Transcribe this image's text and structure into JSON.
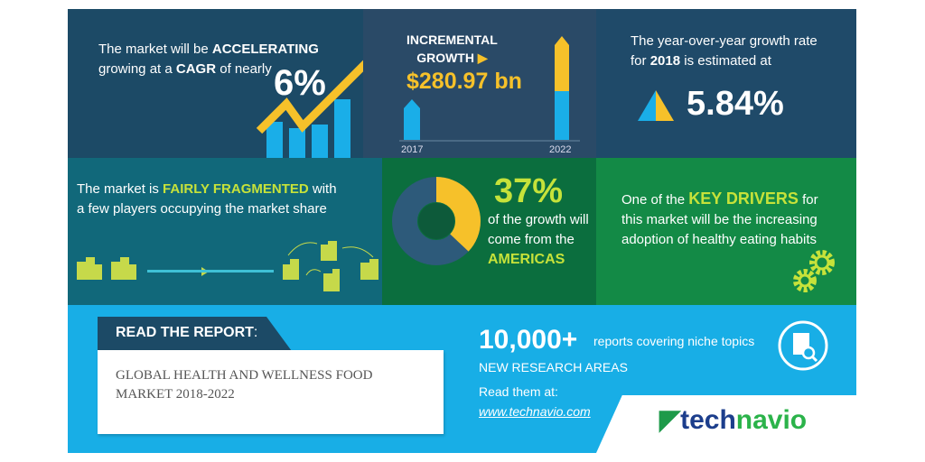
{
  "row1": {
    "cagr": {
      "prefix": "The market will be ",
      "accel": "ACCELERATING",
      "line2a": "growing at a ",
      "cagr": "CAGR",
      "line2b": " of nearly",
      "value": "6%"
    },
    "incremental": {
      "label1": "INCREMENTAL",
      "label2": "GROWTH",
      "value": "$280.97 bn",
      "year_start": "2017",
      "year_end": "2022"
    },
    "yoy": {
      "line1": "The year-over-year growth rate",
      "line2a": "for ",
      "year": "2018",
      "line2b": " is estimated at",
      "value": "5.84%"
    }
  },
  "row2": {
    "fragmented": {
      "prefix": "The market is ",
      "highlight": "FAIRLY FRAGMENTED",
      "suffix": " with",
      "line2": "a few players occupying the market share"
    },
    "region": {
      "value": "37%",
      "share": 0.37,
      "line1": "of the growth will",
      "line2": "come from the",
      "region": "AMERICAS"
    },
    "drivers": {
      "prefix": "One of the ",
      "highlight": "KEY DRIVERS",
      "suffix": " for",
      "line2": "this market will be the increasing",
      "line3": "adoption of healthy eating habits"
    }
  },
  "row3": {
    "read_label": "READ THE REPORT",
    "read_colon": ":",
    "report_title_1": "GLOBAL HEALTH AND WELLNESS FOOD",
    "report_title_2": "MARKET 2018-2022",
    "count": "10,000+",
    "count_desc": "reports covering niche topics",
    "areas": "NEW RESEARCH AREAS",
    "read_at": "Read them at:",
    "url": "www.technavio.com",
    "logo_a": "tech",
    "logo_b": "navio"
  },
  "colors": {
    "yellow": "#f6c12a",
    "lime": "#c6e23a",
    "blue": "#1aaee8",
    "navy": "#1c4a66",
    "green": "#0b6e3e"
  }
}
